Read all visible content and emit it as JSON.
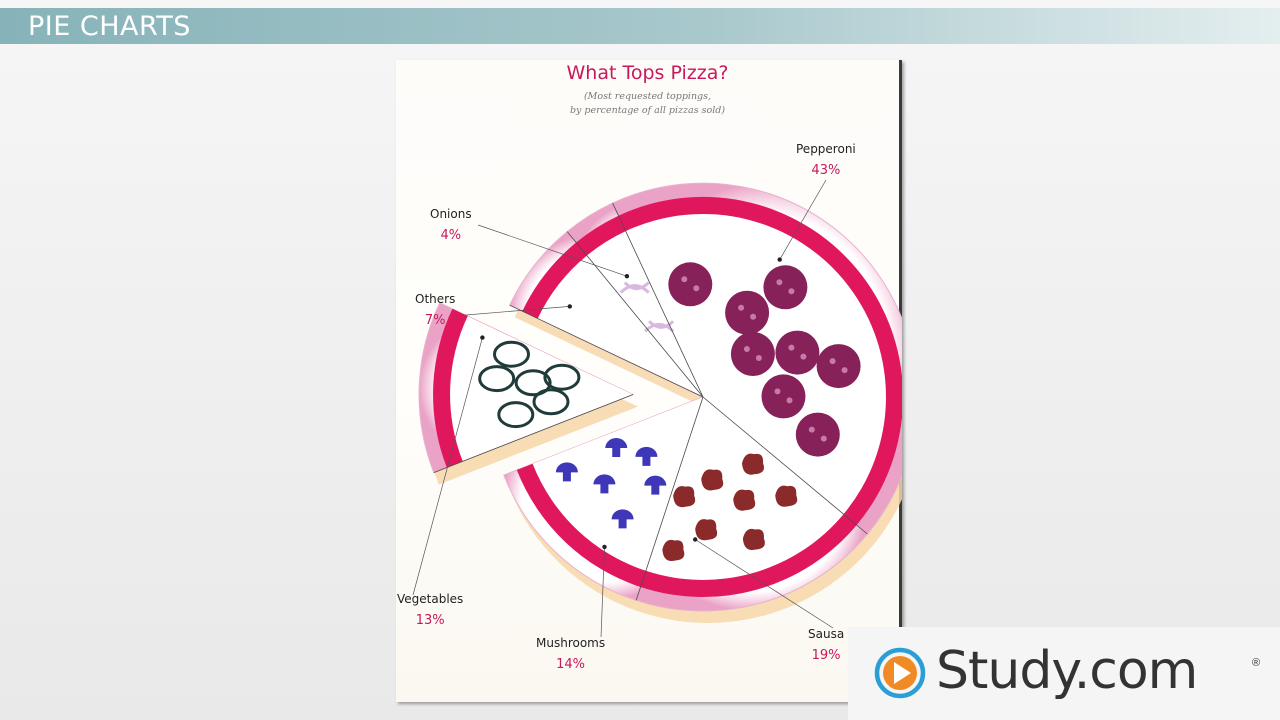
{
  "header": {
    "title": "PIE CHARTS"
  },
  "chart_data": {
    "type": "pie",
    "title": "What Tops Pizza?",
    "subtitle_lines": [
      "(Most requested toppings,",
      "by percentage of all pizzas sold)"
    ],
    "unit": "%",
    "slices": [
      {
        "label": "Pepperoni",
        "value": 43,
        "display": "43%"
      },
      {
        "label": "Sausa",
        "value": 19,
        "display": "19%"
      },
      {
        "label": "Mushrooms",
        "value": 14,
        "display": "14%"
      },
      {
        "label": "Vegetables",
        "value": 13,
        "display": "13%"
      },
      {
        "label": "Others",
        "value": 7,
        "display": "7%"
      },
      {
        "label": "Onions",
        "value": 4,
        "display": "4%"
      }
    ],
    "exploded_slice": "Vegetables"
  },
  "colors": {
    "accent": "#c8195c",
    "crust": "#e1175e",
    "pepperoni": "#86215a",
    "mushroom": "#3e38b8",
    "sausage": "#8a2a2a",
    "vegetable": "#1f3c3a"
  },
  "brand": {
    "name": "Study.com",
    "reg": "®"
  }
}
